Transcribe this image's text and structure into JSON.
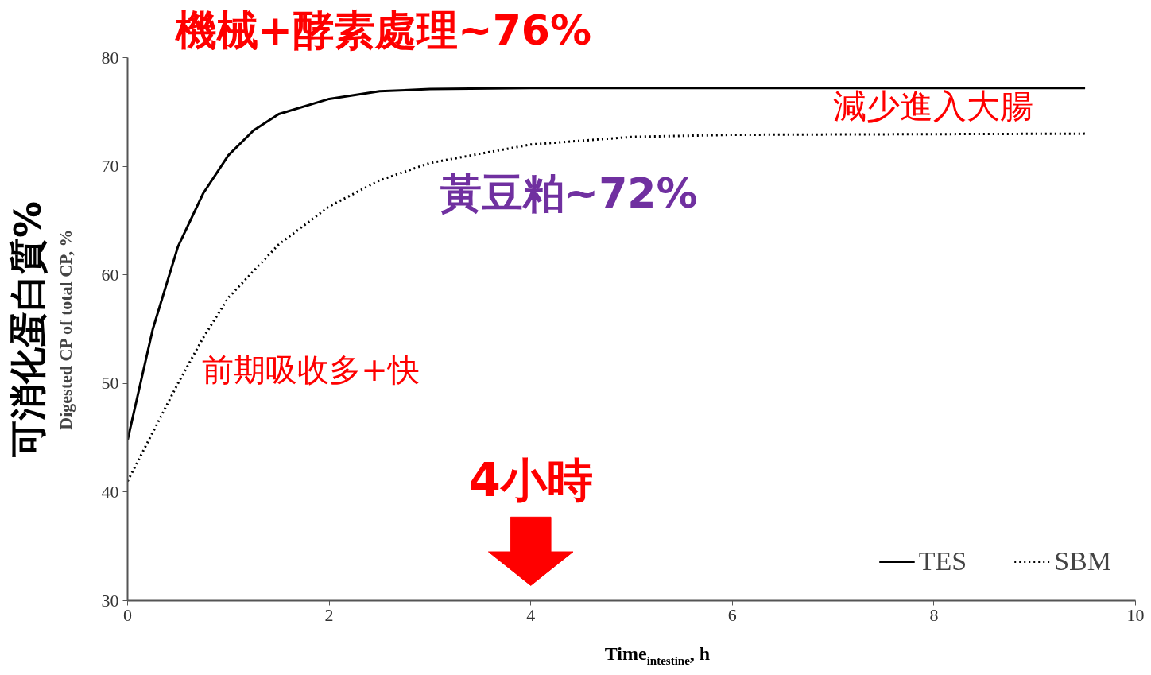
{
  "chart_data": {
    "type": "line",
    "ylabel": "Digested CP of total CP, %",
    "xlabel": "Time$_{intestine}$, h",
    "xlim": [
      0,
      10
    ],
    "xticks": [
      0,
      2,
      4,
      6,
      8,
      10
    ],
    "ylim": [
      30,
      80
    ],
    "yticks": [
      30,
      40,
      50,
      60,
      70,
      80
    ],
    "grid": false,
    "legend": "bottom right",
    "series": [
      {
        "name": "TES",
        "color": "#000000",
        "line_style": "solid",
        "x": [
          0,
          0.25,
          0.5,
          0.75,
          1,
          1.25,
          1.5,
          2,
          2.5,
          3,
          4,
          6,
          9.5
        ],
        "values": [
          44.8,
          55,
          62.6,
          67.5,
          71,
          73.3,
          74.8,
          76.2,
          76.9,
          77.1,
          77.2,
          77.2,
          77.2
        ]
      },
      {
        "name": "SBM",
        "color": "#000000",
        "line_style": "dotted",
        "x": [
          0,
          0.25,
          0.5,
          0.75,
          1,
          1.5,
          2,
          2.5,
          3,
          4,
          5,
          6,
          9.5
        ],
        "values": [
          41,
          45.5,
          50,
          54.2,
          57.9,
          62.8,
          66.3,
          68.7,
          70.3,
          72,
          72.7,
          72.9,
          73
        ]
      }
    ],
    "annotations": [
      "機械+酵素處理~76%",
      "減少進入大腸",
      "黃豆粕~72%",
      "前期吸收多+快",
      "4小時",
      "可消化蛋白質%"
    ]
  }
}
